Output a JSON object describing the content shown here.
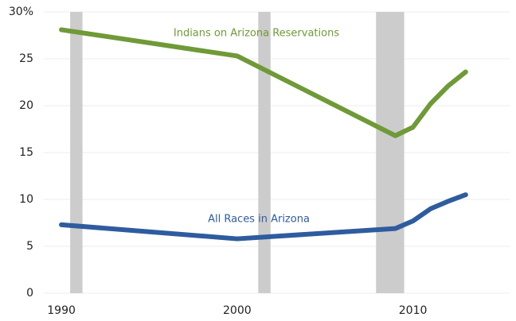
{
  "chart_data": {
    "type": "line",
    "x": [
      1990,
      2000,
      2009,
      2010,
      2011,
      2012,
      2013
    ],
    "series": [
      {
        "name": "Indians on Arizona Reservations",
        "color": "#6f9a37",
        "values": [
          28.1,
          25.3,
          16.8,
          17.7,
          20.2,
          22.1,
          23.6
        ]
      },
      {
        "name": "All Races in Arizona",
        "color": "#2e5c9e",
        "values": [
          7.3,
          5.8,
          6.9,
          7.7,
          9.0,
          9.8,
          10.5
        ]
      }
    ],
    "shaded_ranges": [
      [
        1990.5,
        1991.2
      ],
      [
        2001.2,
        2001.9
      ],
      [
        2007.9,
        2009.5
      ]
    ],
    "shade_color": "#cccccc",
    "xlim": [
      1989,
      2015.5
    ],
    "xticks": [
      1990,
      2000,
      2010
    ],
    "ylim": [
      0,
      30
    ],
    "yticks": [
      0,
      5,
      10,
      15,
      20,
      25,
      {
        "value": 30,
        "label": "30%"
      }
    ],
    "grid": true
  }
}
